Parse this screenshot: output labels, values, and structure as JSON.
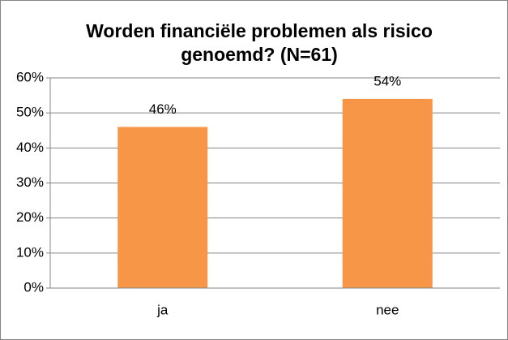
{
  "chart_data": {
    "type": "bar",
    "title": "Worden financiële problemen als risico genoemd? (N=61)",
    "categories": [
      "ja",
      "nee"
    ],
    "values": [
      46,
      54
    ],
    "value_labels": [
      "46%",
      "54%"
    ],
    "color": "#f79646",
    "ylim": [
      0,
      60
    ],
    "yticks": [
      {
        "value": 0,
        "label": "0%"
      },
      {
        "value": 10,
        "label": "10%"
      },
      {
        "value": 20,
        "label": "20%"
      },
      {
        "value": 30,
        "label": "30%"
      },
      {
        "value": 40,
        "label": "40%"
      },
      {
        "value": 50,
        "label": "50%"
      },
      {
        "value": 60,
        "label": "60%"
      }
    ],
    "grid": true
  }
}
